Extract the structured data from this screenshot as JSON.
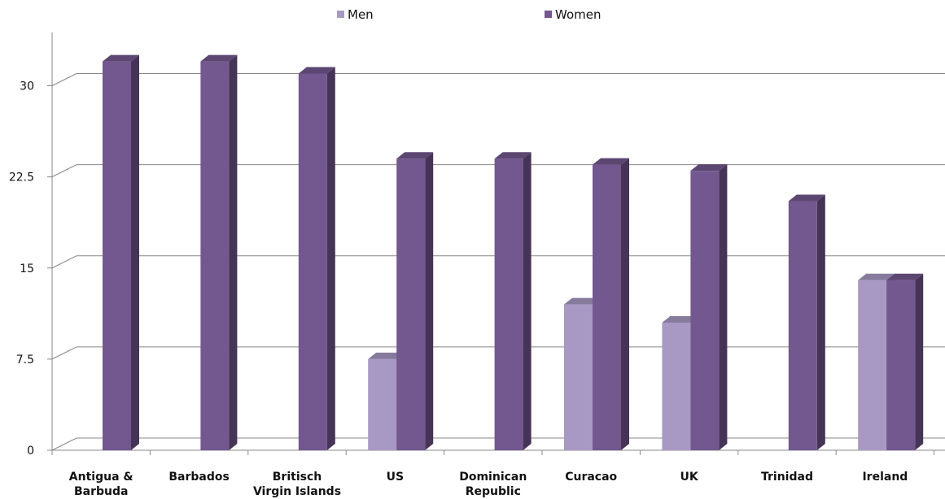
{
  "chart_data": {
    "type": "bar",
    "style": "3d-clustered-column",
    "categories": [
      [
        "Antigua &",
        "Barbuda"
      ],
      [
        "Barbados"
      ],
      [
        "Britisch",
        "Virgin Islands"
      ],
      [
        "US"
      ],
      [
        "Dominican",
        "Republic"
      ],
      [
        "Curacao"
      ],
      [
        "UK"
      ],
      [
        "Trinidad"
      ],
      [
        "Ireland"
      ]
    ],
    "series": [
      {
        "name": "Men",
        "color": "#a899c4",
        "values": [
          null,
          null,
          null,
          7.5,
          null,
          12,
          10.5,
          null,
          14
        ]
      },
      {
        "name": "Women",
        "color": "#73578f",
        "values": [
          32,
          32,
          31,
          24,
          24,
          23.5,
          23,
          20.5,
          14
        ]
      }
    ],
    "yticks": [
      "0",
      "7.5",
      "15",
      "22.5",
      "30"
    ],
    "ylim": [
      0,
      34
    ],
    "grid": true,
    "legend_position": "top"
  }
}
